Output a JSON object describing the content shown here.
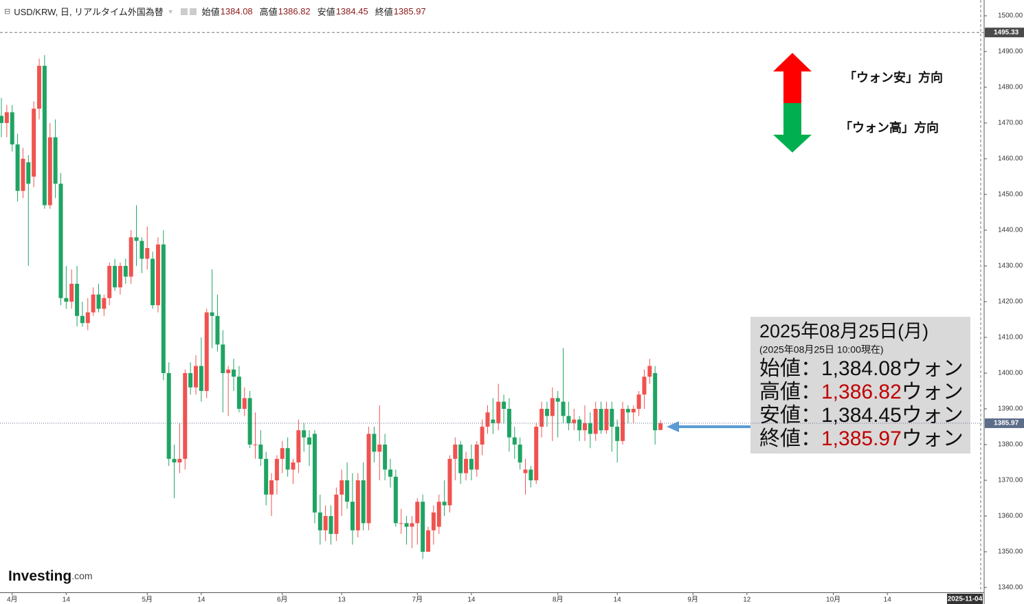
{
  "chart_data": {
    "type": "candlestick",
    "header": {
      "title": "USD/KRW, 日, リアルタイム外国為替",
      "open_label": "始値",
      "open": 1384.08,
      "high_label": "高値",
      "high": 1386.82,
      "low_label": "安値",
      "low": 1384.45,
      "close_label": "終値",
      "close": 1385.97
    },
    "up_color": "#ef5350",
    "down_color": "#1fa463",
    "categories": [
      null,
      null,
      "4月",
      null,
      null,
      null,
      null,
      null,
      null,
      null,
      null,
      null,
      "14",
      null,
      null,
      null,
      null,
      null,
      null,
      null,
      null,
      null,
      null,
      null,
      null,
      null,
      null,
      "5月",
      null,
      null,
      null,
      null,
      null,
      null,
      null,
      null,
      null,
      "14",
      null,
      null,
      null,
      null,
      null,
      null,
      null,
      null,
      null,
      null,
      null,
      null,
      null,
      null,
      "6月",
      null,
      null,
      null,
      null,
      null,
      null,
      null,
      null,
      null,
      null,
      "13",
      null,
      null,
      null,
      null,
      null,
      null,
      null,
      null,
      null,
      null,
      null,
      null,
      null,
      "7月",
      null,
      null,
      null,
      null,
      null,
      null,
      null,
      null,
      null,
      "14",
      null,
      null,
      null,
      null,
      null,
      null,
      null,
      null,
      null,
      null,
      null,
      null,
      null,
      null,
      null,
      "8月",
      null,
      null,
      null,
      null,
      null,
      null,
      null,
      null,
      null,
      null,
      "14",
      null,
      null,
      null,
      null,
      null,
      null,
      null,
      null,
      null,
      null,
      null,
      null,
      null,
      "9月",
      null,
      null,
      null,
      null,
      null,
      null,
      null,
      null,
      null,
      "12",
      null,
      null,
      null,
      null,
      null,
      null,
      null,
      null,
      null,
      null,
      null,
      null,
      null,
      null,
      null,
      "10月",
      null,
      null,
      null,
      null,
      null,
      null,
      null,
      null,
      null,
      "14",
      null,
      null,
      null,
      null,
      null,
      null,
      null,
      null,
      null,
      null,
      null,
      null,
      null,
      null,
      null,
      null,
      null
    ],
    "open": [
      1472,
      1470,
      1473,
      1464,
      1451,
      1459,
      1455,
      1474,
      1486,
      1447,
      1466,
      1453,
      1421,
      1420,
      1425,
      1416,
      1414,
      1417,
      1422,
      1418,
      1421,
      1430,
      1424,
      1430,
      1427,
      1438,
      1437,
      1432,
      1432,
      1419,
      1436,
      1400,
      1376,
      1375,
      1376,
      1400,
      1396,
      1402,
      1395,
      1417,
      1416,
      1408,
      1400,
      1401,
      1399,
      1390,
      1393,
      1380,
      1380,
      1376,
      1366,
      1370,
      1376,
      1379,
      1373,
      1375,
      1384,
      1382,
      1383,
      1361,
      1356,
      1360,
      1355,
      1366,
      1370,
      1364,
      1356,
      1370,
      1358,
      1383,
      1378,
      1380,
      1373,
      1371,
      1358,
      1358,
      1357,
      1358,
      1364,
      1350,
      1356,
      1357,
      1364,
      1363,
      1376,
      1380,
      1372,
      1376,
      1373,
      1380,
      1385,
      1387,
      1386,
      1392,
      1390,
      1382,
      1380,
      1372,
      1373,
      1370,
      1385,
      1390,
      1388,
      1393,
      1392,
      1388,
      1386,
      1387,
      1384,
      1386,
      1383,
      1390,
      1384,
      1390,
      1385,
      1381,
      1390,
      1389,
      1390,
      1394,
      1399,
      1400,
      1384.08,
      null,
      null,
      null,
      null,
      null,
      null,
      null,
      null,
      null,
      null,
      null,
      null,
      null,
      null,
      null,
      null,
      null,
      null,
      null,
      null,
      null,
      null,
      null,
      null,
      null,
      null,
      null,
      null,
      null,
      null,
      null,
      null,
      null,
      null,
      null,
      null,
      null,
      null,
      null,
      null,
      null,
      null,
      null,
      null,
      null,
      null,
      null,
      null,
      null,
      null,
      null,
      null,
      null,
      null,
      null,
      null,
      null,
      null,
      null
    ],
    "high": [
      1477,
      1475,
      1475,
      1467,
      1463,
      1461,
      1476,
      1488,
      1489,
      1470,
      1471,
      1456,
      1430,
      1429,
      1430,
      1420,
      1421,
      1424,
      1425,
      1422,
      1431,
      1432,
      1431,
      1432,
      1440,
      1447,
      1438,
      1441,
      1434,
      1438,
      1440,
      1403,
      1380,
      1386,
      1401,
      1403,
      1405,
      1410,
      1418,
      1429,
      1422,
      1412,
      1402,
      1404,
      1402,
      1396,
      1395,
      1389,
      1384,
      1378,
      1372,
      1377,
      1381,
      1382,
      1376,
      1387,
      1386,
      1384,
      1384,
      1366,
      1363,
      1363,
      1368,
      1373,
      1375,
      1372,
      1372,
      1375,
      1385,
      1385,
      1391,
      1383,
      1376,
      1373,
      1362,
      1360,
      1360,
      1365,
      1366,
      1357,
      1363,
      1366,
      1370,
      1377,
      1382,
      1381,
      1378,
      1380,
      1381,
      1387,
      1391,
      1393,
      1397,
      1394,
      1393,
      1385,
      1382,
      1376,
      1374,
      1386,
      1392,
      1392,
      1396,
      1395,
      1407,
      1392,
      1390,
      1388,
      1391,
      1389,
      1392,
      1392,
      1392,
      1392,
      1387,
      1392,
      1391,
      1391,
      1395,
      1401,
      1404,
      1402,
      1386.82,
      null,
      null,
      null,
      null,
      null,
      null,
      null,
      null,
      null,
      null,
      null,
      null,
      null,
      null,
      null,
      null,
      null,
      null,
      null,
      null,
      null,
      null,
      null,
      null,
      null,
      null,
      null,
      null,
      null,
      null,
      null,
      null,
      null,
      null,
      null,
      null,
      null,
      null,
      null,
      null,
      null,
      null,
      null,
      null,
      null,
      null,
      null,
      null,
      null,
      null,
      null,
      null,
      null,
      null,
      null,
      null,
      null,
      null,
      null
    ],
    "low": [
      1466,
      1466,
      1462,
      1448,
      1449,
      1430,
      1452,
      1471,
      1446,
      1446,
      1449,
      1419,
      1418,
      1418,
      1413,
      1413,
      1412,
      1416,
      1417,
      1416,
      1419,
      1423,
      1422,
      1425,
      1425,
      1430,
      1428,
      1429,
      1418,
      1417,
      1398,
      1374,
      1365,
      1372,
      1373,
      1394,
      1394,
      1392,
      1393,
      1407,
      1406,
      1389,
      1388,
      1395,
      1389,
      1388,
      1379,
      1376,
      1374,
      1363,
      1360,
      1366,
      1372,
      1371,
      1369,
      1372,
      1378,
      1374,
      1358,
      1352,
      1353,
      1352,
      1353,
      1360,
      1362,
      1352,
      1354,
      1356,
      1356,
      1375,
      1370,
      1370,
      1368,
      1357,
      1355,
      1352,
      1351,
      1352,
      1348,
      1350,
      1352,
      1355,
      1360,
      1361,
      1370,
      1369,
      1370,
      1370,
      1371,
      1377,
      1383,
      1383,
      1384,
      1386,
      1378,
      1376,
      1373,
      1366,
      1368,
      1369,
      1382,
      1385,
      1381,
      1382,
      1386,
      1384,
      1384,
      1381,
      1381,
      1379,
      1381,
      1383,
      1383,
      1378,
      1375,
      1380,
      1386,
      1386,
      1388,
      1390,
      1397,
      1380,
      1384.45,
      null,
      null,
      null,
      null,
      null,
      null,
      null,
      null,
      null,
      null,
      null,
      null,
      null,
      null,
      null,
      null,
      null,
      null,
      null,
      null,
      null,
      null,
      null,
      null,
      null,
      null,
      null,
      null,
      null,
      null,
      null,
      null,
      null,
      null,
      null,
      null,
      null,
      null,
      null,
      null,
      null,
      null,
      null,
      null,
      null,
      null,
      null,
      null,
      null,
      null,
      null,
      null,
      null,
      null,
      null,
      null,
      null,
      null,
      null
    ],
    "close": [
      1470,
      1473,
      1464,
      1451,
      1460,
      1453,
      1474,
      1486,
      1447,
      1466,
      1453,
      1421,
      1420,
      1425,
      1416,
      1414,
      1417,
      1422,
      1418,
      1421,
      1430,
      1424,
      1430,
      1427,
      1438,
      1437,
      1432,
      1435,
      1419,
      1436,
      1400,
      1376,
      1375,
      1376,
      1400,
      1396,
      1402,
      1395,
      1417,
      1416,
      1408,
      1400,
      1401,
      1399,
      1390,
      1393,
      1380,
      1380,
      1376,
      1366,
      1370,
      1376,
      1379,
      1373,
      1375,
      1384,
      1382,
      1380,
      1361,
      1356,
      1360,
      1355,
      1366,
      1370,
      1364,
      1356,
      1370,
      1358,
      1383,
      1378,
      1380,
      1373,
      1371,
      1358,
      1358,
      1357,
      1358,
      1364,
      1350,
      1356,
      1361,
      1364,
      1363,
      1376,
      1380,
      1372,
      1376,
      1373,
      1380,
      1385,
      1389,
      1386,
      1392,
      1390,
      1382,
      1380,
      1375,
      1373,
      1370,
      1385,
      1390,
      1388,
      1393,
      1392,
      1388,
      1386,
      1387,
      1384,
      1386,
      1383,
      1390,
      1384,
      1390,
      1385,
      1381,
      1390,
      1389,
      1390,
      1394,
      1399,
      1402,
      1384,
      1385.97,
      null,
      null,
      null,
      null,
      null,
      null,
      null,
      null,
      null,
      null,
      null,
      null,
      null,
      null,
      null,
      null,
      null,
      null,
      null,
      null,
      null,
      null,
      null,
      null,
      null,
      null,
      null,
      null,
      null,
      null,
      null,
      null,
      null,
      null,
      null,
      null,
      null,
      null,
      null,
      null,
      null,
      null,
      null,
      null,
      null,
      null,
      null,
      null,
      null,
      null,
      null,
      null,
      null,
      null,
      null,
      null,
      null,
      null,
      null
    ],
    "ylim": [
      1338.65,
      1504.42
    ],
    "yticks": [
      {
        "value": 1340,
        "label": "1340.00"
      },
      {
        "value": 1350,
        "label": "1350.00"
      },
      {
        "value": 1360,
        "label": "1360.00"
      },
      {
        "value": 1370,
        "label": "1370.00"
      },
      {
        "value": 1380,
        "label": "1380.00"
      },
      {
        "value": 1390,
        "label": "1390.00"
      },
      {
        "value": 1400,
        "label": "1400.00"
      },
      {
        "value": 1410,
        "label": "1410.00"
      },
      {
        "value": 1420,
        "label": "1420.00"
      },
      {
        "value": 1430,
        "label": "1430.00"
      },
      {
        "value": 1440,
        "label": "1440.00"
      },
      {
        "value": 1450,
        "label": "1450.00"
      },
      {
        "value": 1460,
        "label": "1460.00"
      },
      {
        "value": 1470,
        "label": "1470.00"
      },
      {
        "value": 1480,
        "label": "1480.00"
      },
      {
        "value": 1490,
        "label": "1490.00"
      },
      {
        "value": 1500,
        "label": "1500.00"
      }
    ],
    "last_price": 1385.97,
    "crosshair_y": 1495.33,
    "crosshair_x": "2025-11-04",
    "annotations": {
      "up": "「ウォン安」方向",
      "down": "「ウォン高」方向"
    },
    "info_box": {
      "title": "2025年08月25日(月)",
      "subtitle": "(2025年08月25日 10:00現在)",
      "lines": [
        {
          "label": "始値：",
          "value": "1,384.08",
          "unit": "ウォン",
          "value_color": "#111111"
        },
        {
          "label": "高値：",
          "value": "1,386.82",
          "unit": "ウォン",
          "value_color": "#c00000"
        },
        {
          "label": "安値：",
          "value": "1,384.45",
          "unit": "ウォン",
          "value_color": "#111111"
        },
        {
          "label": "終値：",
          "value": "1,385.97",
          "unit": "ウォン",
          "value_color": "#c00000"
        }
      ]
    },
    "logo": {
      "brand": "Investing",
      "suffix": ".com"
    }
  }
}
